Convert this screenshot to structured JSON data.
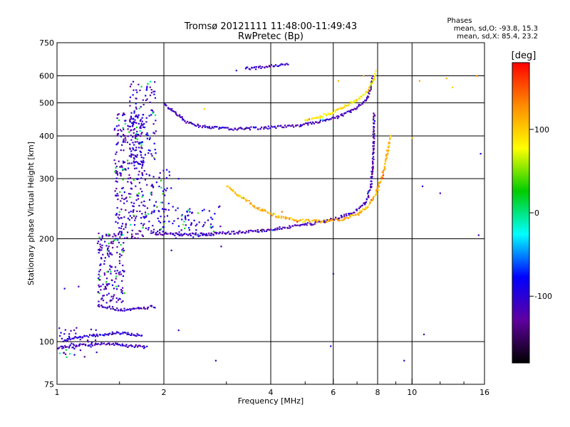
{
  "chart_data": {
    "type": "scatter",
    "title": "Tromsø 20121111 11:48:00-11:49:43",
    "subtitle": "RwPretec (Bp)",
    "xlabel": "Frequency [MHz]",
    "ylabel": "Stationary phase Virtual Height [km]",
    "x_scale": "log",
    "y_scale": "log",
    "xlim": [
      1,
      16
    ],
    "ylim": [
      75,
      750
    ],
    "x_ticks": [
      1,
      2,
      4,
      6,
      8,
      10,
      16
    ],
    "y_ticks": [
      75,
      100,
      200,
      300,
      400,
      500,
      600,
      750
    ],
    "x_grid": [
      2,
      4,
      6,
      8,
      10
    ],
    "y_grid": [
      100,
      200,
      300,
      400,
      500,
      600
    ],
    "grid": true,
    "stats": {
      "title": "Phases",
      "line1": "mean, sd,O: -93.8, 15.3",
      "line2": "mean, sd,X:  85.4, 23.2"
    },
    "colorbar": {
      "label": "[deg]",
      "range": [
        -180,
        180
      ],
      "ticks": [
        100,
        0,
        -100
      ],
      "colors": [
        "#ff0000",
        "#ff8c00",
        "#ffff00",
        "#00cc00",
        "#00ffff",
        "#0000ff",
        "#6000a0",
        "#000000"
      ]
    },
    "traces": [
      {
        "x": [
          2.0,
          2.15,
          2.3,
          2.5,
          2.7,
          3.0,
          3.3,
          3.7,
          4.2,
          4.8,
          5.5,
          6.2,
          6.8,
          7.2,
          7.5,
          7.65,
          7.75
        ],
        "y": [
          495,
          470,
          440,
          428,
          424,
          420,
          420,
          422,
          425,
          430,
          440,
          455,
          475,
          495,
          520,
          555,
          600
        ],
        "phase": -110
      },
      {
        "x": [
          1.85,
          2.0,
          2.2,
          2.5,
          3.0,
          3.5,
          4.0,
          4.6,
          5.3,
          6.0,
          6.6,
          7.1,
          7.45,
          7.65,
          7.75,
          7.8,
          7.82
        ],
        "y": [
          208,
          207,
          206,
          206,
          208,
          210,
          213,
          217,
          222,
          228,
          236,
          245,
          258,
          285,
          330,
          400,
          470
        ],
        "phase": -115
      },
      {
        "x": [
          3.0,
          3.3,
          3.7,
          4.2,
          4.8,
          5.5,
          6.3,
          7.0,
          7.5,
          7.9,
          8.2,
          8.45,
          8.6,
          8.7
        ],
        "y": [
          285,
          265,
          245,
          232,
          226,
          225,
          228,
          235,
          248,
          270,
          300,
          340,
          380,
          400
        ],
        "phase": 110
      },
      {
        "x": [
          5.0,
          5.5,
          6.0,
          6.5,
          7.0,
          7.5,
          7.8,
          7.9
        ],
        "y": [
          445,
          455,
          470,
          490,
          510,
          540,
          580,
          620
        ],
        "phase": 85
      },
      {
        "x": [
          3.4,
          3.6,
          3.8,
          4.0,
          4.2,
          4.5
        ],
        "y": [
          630,
          632,
          636,
          640,
          645,
          652
        ],
        "phase": -110
      },
      {
        "x": [
          1.0,
          1.1,
          1.2,
          1.3,
          1.4,
          1.5,
          1.6,
          1.7,
          1.8
        ],
        "y": [
          96,
          97,
          98,
          98,
          99,
          98,
          97,
          97,
          96
        ],
        "phase": -110
      },
      {
        "x": [
          1.05,
          1.15,
          1.25,
          1.35,
          1.45,
          1.55,
          1.65,
          1.75
        ],
        "y": [
          101,
          103,
          104,
          105,
          106,
          106,
          105,
          104
        ],
        "phase": -100
      },
      {
        "x": [
          1.3,
          1.4,
          1.5,
          1.6,
          1.7,
          1.8,
          1.9
        ],
        "y": [
          128,
          126,
          124,
          124,
          125,
          126,
          127
        ],
        "phase": -110
      }
    ],
    "clouds": [
      {
        "x": [
          1.3,
          1.55
        ],
        "y": [
          130,
          210
        ],
        "n": 170,
        "phase": -110
      },
      {
        "x": [
          1.45,
          1.75
        ],
        "y": [
          200,
          470
        ],
        "n": 280,
        "phase": -110
      },
      {
        "x": [
          1.6,
          1.9
        ],
        "y": [
          330,
          580
        ],
        "n": 140,
        "phase": -105
      },
      {
        "x": [
          1.75,
          2.1
        ],
        "y": [
          210,
          320
        ],
        "n": 90,
        "phase": -100
      },
      {
        "x": [
          2.1,
          2.9
        ],
        "y": [
          200,
          250
        ],
        "n": 70,
        "phase": -95
      },
      {
        "x": [
          1.0,
          1.3
        ],
        "y": [
          90,
          110
        ],
        "n": 40,
        "phase": -110
      }
    ],
    "scatter": [
      {
        "x": 1.05,
        "y": 143,
        "phase": -100
      },
      {
        "x": 1.15,
        "y": 145,
        "phase": -110
      },
      {
        "x": 2.2,
        "y": 108,
        "phase": -110
      },
      {
        "x": 2.8,
        "y": 88,
        "phase": -110
      },
      {
        "x": 5.9,
        "y": 97,
        "phase": -110
      },
      {
        "x": 6.0,
        "y": 158,
        "phase": -110
      },
      {
        "x": 9.5,
        "y": 88,
        "phase": -110
      },
      {
        "x": 10.8,
        "y": 105,
        "phase": -110
      },
      {
        "x": 10.0,
        "y": 395,
        "phase": 100
      },
      {
        "x": 10.5,
        "y": 580,
        "phase": 120
      },
      {
        "x": 12.5,
        "y": 590,
        "phase": 110
      },
      {
        "x": 13.0,
        "y": 555,
        "phase": 100
      },
      {
        "x": 12.0,
        "y": 272,
        "phase": -110
      },
      {
        "x": 10.7,
        "y": 285,
        "phase": -100
      },
      {
        "x": 15.2,
        "y": 600,
        "phase": 130
      },
      {
        "x": 15.6,
        "y": 355,
        "phase": -100
      },
      {
        "x": 15.4,
        "y": 205,
        "phase": -110
      },
      {
        "x": 2.6,
        "y": 480,
        "phase": 100
      },
      {
        "x": 2.9,
        "y": 190,
        "phase": -110
      },
      {
        "x": 4.3,
        "y": 240,
        "phase": 140
      },
      {
        "x": 6.2,
        "y": 580,
        "phase": 110
      },
      {
        "x": 7.3,
        "y": 600,
        "phase": 120
      },
      {
        "x": 3.2,
        "y": 622,
        "phase": -110
      },
      {
        "x": 2.2,
        "y": 300,
        "phase": -100
      },
      {
        "x": 2.1,
        "y": 185,
        "phase": -110
      }
    ]
  }
}
